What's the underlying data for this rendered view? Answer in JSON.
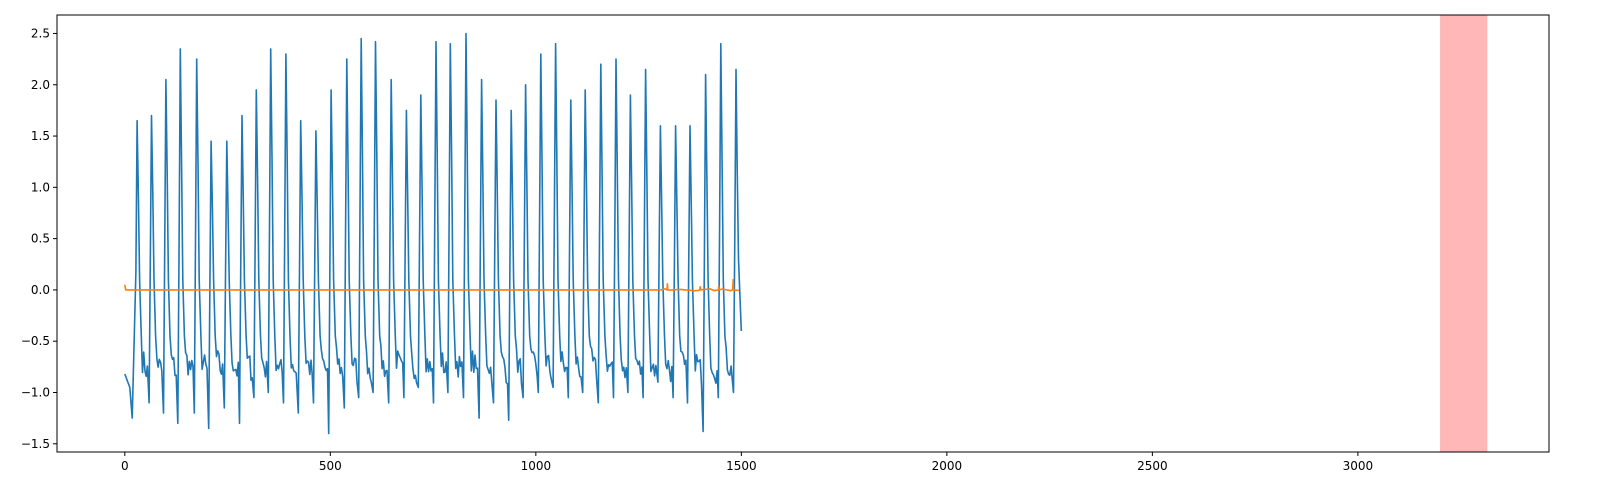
{
  "chart_data": {
    "type": "line",
    "title": "",
    "xlabel": "",
    "ylabel": "",
    "xlim": [
      -165,
      3465
    ],
    "ylim": [
      -1.58,
      2.68
    ],
    "xticks": [
      0,
      500,
      1000,
      1500,
      2000,
      2500,
      3000
    ],
    "yticks": [
      -1.5,
      -1.0,
      -0.5,
      0.0,
      0.5,
      1.0,
      1.5,
      2.0,
      2.5
    ],
    "xtick_labels": [
      "0",
      "500",
      "1000",
      "1500",
      "2000",
      "2500",
      "3000"
    ],
    "ytick_labels": [
      "−1.5",
      "−1.0",
      "−0.5",
      "0.0",
      "0.5",
      "1.0",
      "1.5",
      "2.0",
      "2.5"
    ],
    "grid": false,
    "highlight_region": {
      "x_start": 3200,
      "x_end": 3315,
      "color": "#ffb3b3"
    },
    "series": [
      {
        "color": "#1f77b4",
        "x_range": [
          0,
          1500
        ],
        "cycle_peaks_x": [
          30,
          65,
          100,
          135,
          175,
          210,
          248,
          285,
          320,
          355,
          392,
          428,
          465,
          502,
          540,
          575,
          610,
          648,
          685,
          720,
          757,
          792,
          830,
          868,
          903,
          940,
          975,
          1012,
          1048,
          1085,
          1120,
          1158,
          1195,
          1230,
          1267,
          1303,
          1340,
          1375,
          1413,
          1450,
          1487
        ],
        "cycle_peaks_y": [
          1.65,
          1.7,
          2.05,
          2.35,
          2.25,
          1.45,
          1.45,
          1.7,
          1.95,
          2.35,
          2.3,
          1.65,
          1.55,
          1.95,
          2.25,
          2.45,
          2.42,
          2.05,
          1.75,
          1.9,
          2.42,
          2.4,
          2.5,
          2.05,
          1.85,
          1.75,
          2.0,
          2.3,
          2.4,
          1.85,
          1.95,
          2.2,
          2.25,
          1.9,
          2.15,
          1.6,
          1.6,
          1.6,
          2.1,
          2.4,
          2.15
        ],
        "cycle_troughs_y": [
          -1.25,
          -1.1,
          -1.2,
          -1.3,
          -1.2,
          -1.35,
          -1.15,
          -1.3,
          -1.05,
          -1.0,
          -1.1,
          -1.2,
          -1.1,
          -1.4,
          -1.15,
          -1.05,
          -1.0,
          -1.1,
          -1.05,
          -0.95,
          -1.1,
          -1.0,
          -1.05,
          -1.25,
          -1.1,
          -1.27,
          -1.05,
          -1.0,
          -0.95,
          -1.05,
          -1.0,
          -1.1,
          -1.05,
          -1.0,
          -1.05,
          -0.9,
          -1.05,
          -1.1,
          -1.38,
          -1.05,
          -1.0
        ],
        "start_y": -0.82,
        "end_y": -0.4
      },
      {
        "color": "#ff7f0e",
        "x_range": [
          0,
          1500
        ],
        "baseline_y": 0.0,
        "spikes": [
          {
            "x": 0,
            "y": 0.05
          },
          {
            "x": 1320,
            "y": 0.06
          },
          {
            "x": 1400,
            "y": 0.03
          },
          {
            "x": 1445,
            "y": 0.03
          },
          {
            "x": 1480,
            "y": 0.1
          }
        ]
      }
    ]
  }
}
